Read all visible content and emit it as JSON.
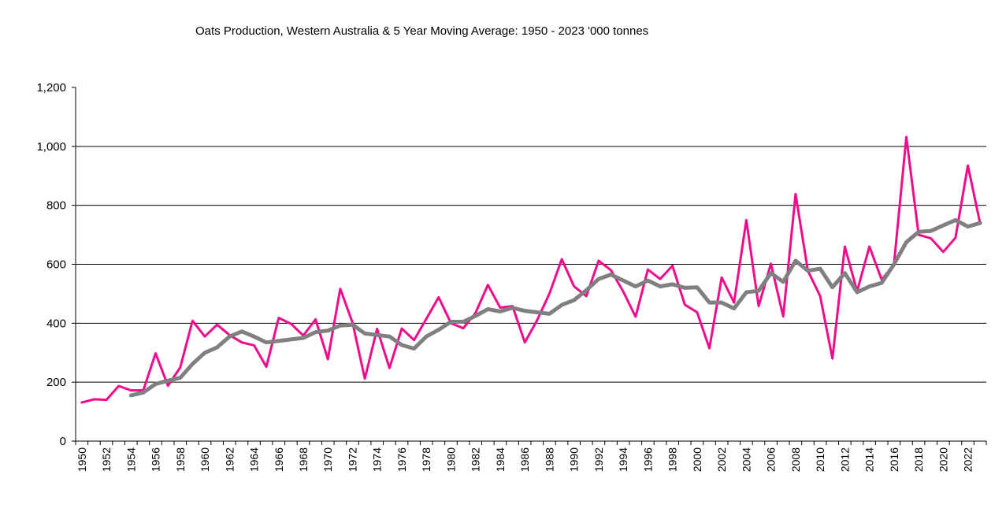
{
  "chart_data": {
    "type": "line",
    "title": "Oats Production, Western Australia & 5 Year Moving Average: 1950 - 2023  '000 tonnes",
    "xlabel": "",
    "ylabel": "",
    "ylim": [
      0,
      1200
    ],
    "yticks": [
      0,
      200,
      400,
      600,
      800,
      1000,
      1200
    ],
    "ytick_labels": [
      "0",
      "200",
      "400",
      "600",
      "800",
      "1,000",
      "1,200"
    ],
    "grid": true,
    "x": [
      1950,
      1951,
      1952,
      1953,
      1954,
      1955,
      1956,
      1957,
      1958,
      1959,
      1960,
      1961,
      1962,
      1963,
      1964,
      1965,
      1966,
      1967,
      1968,
      1969,
      1970,
      1971,
      1972,
      1973,
      1974,
      1975,
      1976,
      1977,
      1978,
      1979,
      1980,
      1981,
      1982,
      1983,
      1984,
      1985,
      1986,
      1987,
      1988,
      1989,
      1990,
      1991,
      1992,
      1993,
      1994,
      1995,
      1996,
      1997,
      1998,
      1999,
      2000,
      2001,
      2002,
      2003,
      2004,
      2005,
      2006,
      2007,
      2008,
      2009,
      2010,
      2011,
      2012,
      2013,
      2014,
      2015,
      2016,
      2017,
      2018,
      2019,
      2020,
      2021,
      2022,
      2023
    ],
    "xtick_labels": [
      "1950",
      "1952",
      "1954",
      "1956",
      "1958",
      "1960",
      "1962",
      "1964",
      "1966",
      "1968",
      "1970",
      "1972",
      "1974",
      "1976",
      "1978",
      "1980",
      "1982",
      "1984",
      "1986",
      "1988",
      "1990",
      "1992",
      "1994",
      "1996",
      "1998",
      "2000",
      "2002",
      "2004",
      "2006",
      "2008",
      "2010",
      "2012",
      "2014",
      "2016",
      "2018",
      "2020",
      "2022"
    ],
    "series": [
      {
        "name": "Oats Production",
        "color": "#ee0b8c",
        "values": [
          131,
          142,
          140,
          187,
          172,
          172,
          298,
          188,
          250,
          408,
          355,
          395,
          360,
          335,
          325,
          252,
          418,
          398,
          358,
          413,
          278,
          517,
          402,
          212,
          381,
          248,
          382,
          343,
          415,
          488,
          400,
          383,
          435,
          530,
          453,
          458,
          335,
          410,
          500,
          617,
          525,
          492,
          612,
          580,
          507,
          422,
          582,
          550,
          595,
          463,
          437,
          315,
          555,
          470,
          750,
          458,
          602,
          423,
          838,
          578,
          492,
          280,
          660,
          508,
          660,
          548,
          600,
          1032,
          700,
          688,
          642,
          690,
          935,
          738
        ]
      },
      {
        "name": "5 Year Moving Average",
        "color": "#808080",
        "values": [
          null,
          null,
          null,
          null,
          155,
          165,
          194,
          205,
          215,
          262,
          300,
          318,
          355,
          372,
          355,
          335,
          340,
          345,
          350,
          370,
          375,
          392,
          395,
          365,
          360,
          355,
          326,
          314,
          355,
          378,
          405,
          405,
          425,
          448,
          440,
          452,
          442,
          437,
          432,
          462,
          478,
          512,
          550,
          565,
          545,
          525,
          545,
          525,
          532,
          520,
          522,
          470,
          470,
          450,
          505,
          510,
          570,
          540,
          612,
          578,
          585,
          522,
          570,
          505,
          525,
          537,
          600,
          675,
          710,
          713,
          732,
          750,
          728,
          740
        ]
      }
    ]
  }
}
